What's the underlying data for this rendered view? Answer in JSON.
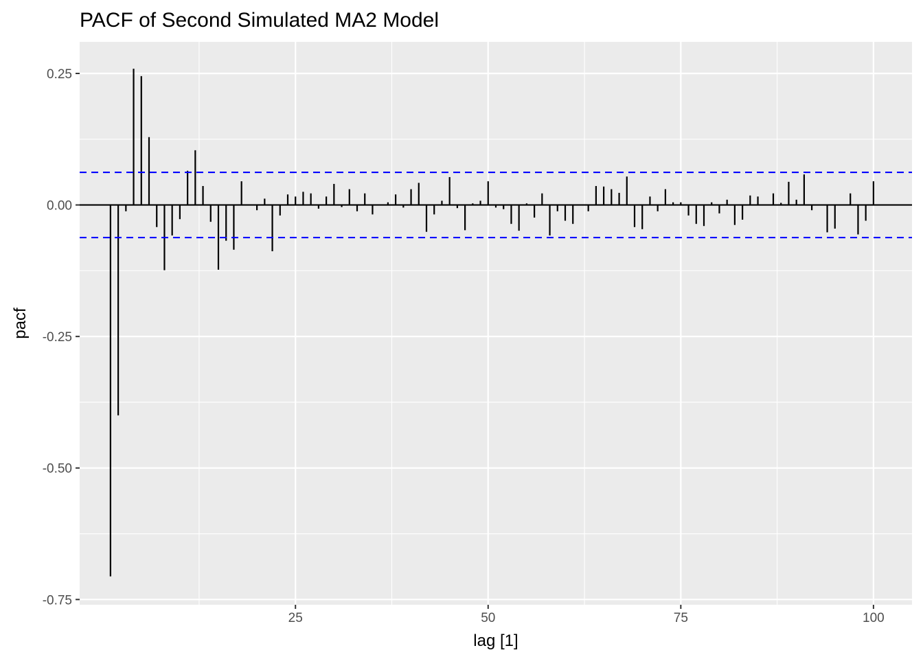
{
  "chart_data": {
    "type": "bar",
    "title": "PACF of Second Simulated MA2 Model",
    "xlabel": "lag [1]",
    "ylabel": "pacf",
    "xlim": [
      -3,
      105
    ],
    "ylim": [
      -0.76,
      0.31
    ],
    "x_major_ticks": [
      25,
      50,
      75,
      100
    ],
    "x_tick_labels": [
      "25",
      "50",
      "75",
      "100"
    ],
    "y_major_ticks": [
      -0.75,
      -0.5,
      -0.25,
      0.0,
      0.25
    ],
    "y_tick_labels": [
      "-0.75",
      "-0.50",
      "-0.25",
      "0.00",
      "0.25"
    ],
    "confidence_bound": 0.062,
    "confidence_color": "#0000ff",
    "grid": true,
    "lags": [
      1,
      2,
      3,
      4,
      5,
      6,
      7,
      8,
      9,
      10,
      11,
      12,
      13,
      14,
      15,
      16,
      17,
      18,
      19,
      20,
      21,
      22,
      23,
      24,
      25,
      26,
      27,
      28,
      29,
      30,
      31,
      32,
      33,
      34,
      35,
      36,
      37,
      38,
      39,
      40,
      41,
      42,
      43,
      44,
      45,
      46,
      47,
      48,
      49,
      50,
      51,
      52,
      53,
      54,
      55,
      56,
      57,
      58,
      59,
      60,
      61,
      62,
      63,
      64,
      65,
      66,
      67,
      68,
      69,
      70,
      71,
      72,
      73,
      74,
      75,
      76,
      77,
      78,
      79,
      80,
      81,
      82,
      83,
      84,
      85,
      86,
      87,
      88,
      89,
      90,
      91,
      92,
      93,
      94,
      95,
      96,
      97,
      98,
      99,
      100
    ],
    "values": [
      -0.706,
      -0.4,
      -0.012,
      0.259,
      0.245,
      0.129,
      -0.042,
      -0.124,
      -0.058,
      -0.027,
      0.065,
      0.104,
      0.036,
      -0.032,
      -0.123,
      -0.068,
      -0.085,
      0.045,
      0.0,
      -0.01,
      0.012,
      -0.088,
      -0.02,
      0.02,
      0.016,
      0.025,
      0.022,
      -0.007,
      0.016,
      0.04,
      -0.004,
      0.03,
      -0.012,
      0.022,
      -0.018,
      0.0,
      0.005,
      0.02,
      -0.005,
      0.03,
      0.042,
      -0.051,
      -0.018,
      0.008,
      0.053,
      -0.006,
      -0.048,
      0.003,
      0.008,
      0.045,
      -0.005,
      -0.008,
      -0.036,
      -0.049,
      0.003,
      -0.024,
      0.022,
      -0.058,
      -0.012,
      -0.03,
      -0.036,
      0.0,
      -0.012,
      0.036,
      0.035,
      0.03,
      0.023,
      0.054,
      -0.042,
      -0.046,
      0.016,
      -0.012,
      0.03,
      0.005,
      0.005,
      -0.02,
      -0.036,
      -0.04,
      0.005,
      -0.016,
      0.01,
      -0.038,
      -0.028,
      0.018,
      0.016,
      0.0,
      0.022,
      0.004,
      0.044,
      0.01,
      0.058,
      -0.01,
      0.0,
      -0.052,
      -0.045,
      0.0,
      0.022,
      -0.056,
      -0.03,
      0.045
    ]
  }
}
